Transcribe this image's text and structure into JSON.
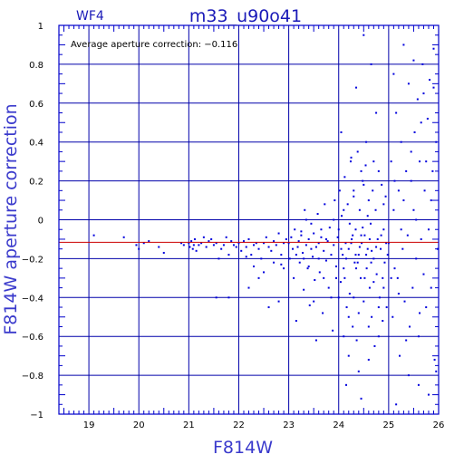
{
  "header": {
    "chip_label": "WF4",
    "title": "m33_u90o41"
  },
  "annotation": "Average aperture correction: −0.116",
  "colors": {
    "frame": "#0000cc",
    "grid": "#0000aa",
    "points": "#0000dd",
    "reference_line": "#cc0000",
    "axis_title": "#3a3acc"
  },
  "chart_data": {
    "type": "scatter",
    "xlabel": "F814W",
    "ylabel": "F814W aperture correction",
    "xlim": [
      18.4,
      26.0
    ],
    "ylim": [
      -1.0,
      1.0
    ],
    "x_ticks": [
      19,
      20,
      21,
      22,
      23,
      24,
      25,
      26
    ],
    "y_ticks": [
      -1,
      -0.8,
      -0.6,
      -0.4,
      -0.2,
      0,
      0.2,
      0.4,
      0.6,
      0.8,
      1
    ],
    "x_tick_labels": [
      "19",
      "20",
      "21",
      "22",
      "23",
      "24",
      "25",
      "26"
    ],
    "y_tick_labels": [
      "−1",
      "−0.8",
      "−0.6",
      "−0.4",
      "−0.2",
      "0",
      "0.2",
      "0.4",
      "0.6",
      "0.8",
      "1"
    ],
    "grid": true,
    "reference_line_y": -0.116,
    "series": [
      {
        "points": [
          [
            19.1,
            -0.08
          ],
          [
            19.7,
            -0.09
          ],
          [
            19.95,
            -0.13
          ],
          [
            20.0,
            -0.15
          ],
          [
            20.1,
            -0.12
          ],
          [
            20.2,
            -0.11
          ],
          [
            20.4,
            -0.14
          ],
          [
            20.5,
            -0.17
          ],
          [
            20.85,
            -0.12
          ],
          [
            20.9,
            -0.13
          ],
          [
            21.0,
            -0.12
          ],
          [
            21.02,
            -0.14
          ],
          [
            21.05,
            -0.11
          ],
          [
            21.08,
            -0.15
          ],
          [
            21.1,
            -0.13
          ],
          [
            21.12,
            -0.1
          ],
          [
            21.15,
            -0.16
          ],
          [
            21.2,
            -0.13
          ],
          [
            21.25,
            -0.12
          ],
          [
            21.3,
            -0.09
          ],
          [
            21.35,
            -0.14
          ],
          [
            21.4,
            -0.11
          ],
          [
            21.45,
            -0.1
          ],
          [
            21.5,
            -0.13
          ],
          [
            21.55,
            -0.12
          ],
          [
            21.6,
            -0.2
          ],
          [
            21.65,
            -0.15
          ],
          [
            21.7,
            -0.13
          ],
          [
            21.75,
            -0.09
          ],
          [
            21.8,
            -0.18
          ],
          [
            21.85,
            -0.11
          ],
          [
            21.9,
            -0.13
          ],
          [
            21.95,
            -0.14
          ],
          [
            21.55,
            -0.4
          ],
          [
            21.8,
            -0.4
          ],
          [
            22.0,
            -0.12
          ],
          [
            22.05,
            -0.16
          ],
          [
            22.1,
            -0.11
          ],
          [
            22.15,
            -0.14
          ],
          [
            22.2,
            -0.1
          ],
          [
            22.25,
            -0.18
          ],
          [
            22.3,
            -0.13
          ],
          [
            22.35,
            -0.12
          ],
          [
            22.4,
            -0.15
          ],
          [
            22.45,
            -0.2
          ],
          [
            22.5,
            -0.12
          ],
          [
            22.55,
            -0.09
          ],
          [
            22.6,
            -0.14
          ],
          [
            22.65,
            -0.16
          ],
          [
            22.7,
            -0.11
          ],
          [
            22.75,
            -0.13
          ],
          [
            22.8,
            -0.07
          ],
          [
            22.85,
            -0.18
          ],
          [
            22.9,
            -0.12
          ],
          [
            22.95,
            -0.1
          ],
          [
            22.2,
            -0.35
          ],
          [
            22.4,
            -0.3
          ],
          [
            22.6,
            -0.45
          ],
          [
            22.8,
            -0.42
          ],
          [
            22.9,
            -0.25
          ],
          [
            22.3,
            -0.24
          ],
          [
            22.7,
            -0.22
          ],
          [
            22.5,
            -0.27
          ],
          [
            22.15,
            -0.19
          ],
          [
            22.85,
            -0.23
          ],
          [
            23.0,
            -0.12
          ],
          [
            23.02,
            -0.2
          ],
          [
            23.05,
            -0.09
          ],
          [
            23.08,
            -0.15
          ],
          [
            23.1,
            -0.3
          ],
          [
            23.12,
            -0.05
          ],
          [
            23.15,
            -0.52
          ],
          [
            23.18,
            -0.14
          ],
          [
            23.2,
            -0.11
          ],
          [
            23.22,
            -0.22
          ],
          [
            23.25,
            -0.08
          ],
          [
            23.28,
            -0.17
          ],
          [
            23.3,
            -0.36
          ],
          [
            23.32,
            0.05
          ],
          [
            23.35,
            -0.13
          ],
          [
            23.38,
            -0.25
          ],
          [
            23.4,
            -0.1
          ],
          [
            23.42,
            -0.44
          ],
          [
            23.45,
            -0.02
          ],
          [
            23.48,
            -0.19
          ],
          [
            23.5,
            -0.07
          ],
          [
            23.52,
            -0.31
          ],
          [
            23.55,
            -0.14
          ],
          [
            23.58,
            0.03
          ],
          [
            23.6,
            -0.12
          ],
          [
            23.62,
            -0.27
          ],
          [
            23.65,
            -0.09
          ],
          [
            23.68,
            -0.48
          ],
          [
            23.7,
            -0.16
          ],
          [
            23.72,
            0.08
          ],
          [
            23.75,
            -0.21
          ],
          [
            23.78,
            -0.11
          ],
          [
            23.8,
            -0.35
          ],
          [
            23.82,
            -0.04
          ],
          [
            23.85,
            -0.18
          ],
          [
            23.88,
            -0.57
          ],
          [
            23.9,
            -0.13
          ],
          [
            23.92,
            0.1
          ],
          [
            23.95,
            -0.24
          ],
          [
            23.98,
            -0.09
          ],
          [
            23.55,
            -0.62
          ],
          [
            23.3,
            -0.2
          ],
          [
            23.7,
            -0.3
          ],
          [
            23.45,
            -0.15
          ],
          [
            23.65,
            -0.05
          ],
          [
            23.85,
            -0.4
          ],
          [
            23.25,
            -0.06
          ],
          [
            23.9,
            0.0
          ],
          [
            23.6,
            -0.2
          ],
          [
            23.4,
            -0.24
          ],
          [
            23.15,
            -0.18
          ],
          [
            23.75,
            -0.1
          ],
          [
            23.5,
            -0.42
          ],
          [
            23.35,
            0.0
          ],
          [
            23.95,
            -0.3
          ],
          [
            24.0,
            -0.05
          ],
          [
            24.02,
            0.15
          ],
          [
            24.04,
            -0.32
          ],
          [
            24.06,
            0.02
          ],
          [
            24.08,
            -0.18
          ],
          [
            24.1,
            -0.25
          ],
          [
            24.12,
            0.22
          ],
          [
            24.14,
            -0.12
          ],
          [
            24.16,
            -0.45
          ],
          [
            24.18,
            0.08
          ],
          [
            24.2,
            -0.15
          ],
          [
            24.22,
            -0.38
          ],
          [
            24.24,
            0.3
          ],
          [
            24.26,
            -0.1
          ],
          [
            24.28,
            -0.55
          ],
          [
            24.3,
            0.12
          ],
          [
            24.32,
            -0.22
          ],
          [
            24.34,
            -0.05
          ],
          [
            24.36,
            -0.62
          ],
          [
            24.38,
            0.35
          ],
          [
            24.4,
            -0.18
          ],
          [
            24.42,
            0.05
          ],
          [
            24.44,
            -0.3
          ],
          [
            24.46,
            -0.12
          ],
          [
            24.48,
            0.2
          ],
          [
            24.5,
            -0.42
          ],
          [
            24.52,
            -0.08
          ],
          [
            24.54,
            0.28
          ],
          [
            24.56,
            -0.25
          ],
          [
            24.58,
            -0.15
          ],
          [
            24.6,
            0.1
          ],
          [
            24.62,
            -0.35
          ],
          [
            24.64,
            -0.02
          ],
          [
            24.66,
            -0.5
          ],
          [
            24.68,
            0.15
          ],
          [
            24.7,
            -0.2
          ],
          [
            24.72,
            -0.65
          ],
          [
            24.74,
            0.05
          ],
          [
            24.76,
            -0.28
          ],
          [
            24.78,
            -0.1
          ],
          [
            24.8,
            0.25
          ],
          [
            24.82,
            -0.4
          ],
          [
            24.84,
            -0.15
          ],
          [
            24.86,
            0.18
          ],
          [
            24.88,
            -0.3
          ],
          [
            24.9,
            -0.05
          ],
          [
            24.92,
            -0.22
          ],
          [
            24.94,
            0.12
          ],
          [
            24.96,
            -0.45
          ],
          [
            24.98,
            -0.18
          ],
          [
            24.05,
            -0.15
          ],
          [
            24.15,
            -0.2
          ],
          [
            24.25,
            -0.12
          ],
          [
            24.35,
            -0.25
          ],
          [
            24.45,
            -0.08
          ],
          [
            24.55,
            -0.18
          ],
          [
            24.65,
            -0.22
          ],
          [
            24.75,
            -0.14
          ],
          [
            24.85,
            -0.08
          ],
          [
            24.95,
            -0.12
          ],
          [
            24.1,
            0.05
          ],
          [
            24.3,
            -0.4
          ],
          [
            24.5,
            0.18
          ],
          [
            24.7,
            -0.32
          ],
          [
            24.9,
            0.08
          ],
          [
            24.2,
            -0.7
          ],
          [
            24.4,
            -0.78
          ],
          [
            24.6,
            -0.72
          ],
          [
            24.8,
            -0.6
          ],
          [
            24.15,
            -0.85
          ],
          [
            24.45,
            -0.92
          ],
          [
            24.35,
            0.68
          ],
          [
            24.55,
            0.4
          ],
          [
            24.25,
            0.32
          ],
          [
            24.05,
            0.45
          ],
          [
            24.5,
            0.95
          ],
          [
            24.65,
            0.8
          ],
          [
            24.75,
            0.55
          ],
          [
            24.45,
            0.25
          ],
          [
            24.3,
            0.15
          ],
          [
            24.2,
            -0.5
          ],
          [
            24.6,
            -0.55
          ],
          [
            24.4,
            -0.48
          ],
          [
            24.8,
            -0.45
          ],
          [
            24.1,
            -0.6
          ],
          [
            24.9,
            -0.35
          ],
          [
            24.0,
            -0.4
          ],
          [
            24.7,
            0.3
          ],
          [
            24.38,
            -0.22
          ],
          [
            24.52,
            -0.3
          ],
          [
            24.48,
            -0.04
          ],
          [
            24.62,
            -0.1
          ],
          [
            24.28,
            -0.08
          ],
          [
            24.58,
            0.02
          ],
          [
            24.42,
            -0.14
          ],
          [
            24.34,
            -0.18
          ],
          [
            24.66,
            -0.16
          ],
          [
            24.22,
            -0.02
          ],
          [
            24.12,
            -0.3
          ],
          [
            24.88,
            -0.52
          ],
          [
            25.0,
            -0.12
          ],
          [
            25.05,
            0.3
          ],
          [
            25.08,
            -0.5
          ],
          [
            25.1,
            0.05
          ],
          [
            25.12,
            -0.25
          ],
          [
            25.15,
            0.55
          ],
          [
            25.18,
            -0.3
          ],
          [
            25.2,
            0.15
          ],
          [
            25.22,
            -0.7
          ],
          [
            25.25,
            0.4
          ],
          [
            25.28,
            -0.15
          ],
          [
            25.3,
            0.1
          ],
          [
            25.32,
            -0.42
          ],
          [
            25.35,
            0.25
          ],
          [
            25.38,
            -0.08
          ],
          [
            25.4,
            0.7
          ],
          [
            25.42,
            -0.55
          ],
          [
            25.45,
            0.2
          ],
          [
            25.48,
            -0.35
          ],
          [
            25.5,
            0.05
          ],
          [
            25.52,
            0.45
          ],
          [
            25.55,
            -0.2
          ],
          [
            25.58,
            0.62
          ],
          [
            25.6,
            -0.6
          ],
          [
            25.62,
            0.3
          ],
          [
            25.65,
            -0.1
          ],
          [
            25.68,
            0.8
          ],
          [
            25.7,
            -0.28
          ],
          [
            25.72,
            0.15
          ],
          [
            25.75,
            -0.45
          ],
          [
            25.78,
            0.52
          ],
          [
            25.8,
            -0.05
          ],
          [
            25.82,
            0.72
          ],
          [
            25.85,
            -0.35
          ],
          [
            25.88,
            0.25
          ],
          [
            25.9,
            0.68
          ],
          [
            25.92,
            -0.72
          ],
          [
            25.95,
            0.4
          ],
          [
            25.98,
            -0.15
          ],
          [
            25.1,
            0.75
          ],
          [
            25.3,
            0.9
          ],
          [
            25.5,
            0.82
          ],
          [
            25.7,
            0.65
          ],
          [
            25.9,
            0.88
          ],
          [
            25.4,
            -0.8
          ],
          [
            25.6,
            -0.85
          ],
          [
            25.8,
            -0.9
          ],
          [
            25.15,
            -0.95
          ],
          [
            25.95,
            -0.78
          ],
          [
            25.2,
            -0.38
          ],
          [
            25.35,
            -0.62
          ],
          [
            25.45,
            0.35
          ],
          [
            25.65,
            0.5
          ],
          [
            25.85,
            0.1
          ],
          [
            25.25,
            -0.05
          ],
          [
            25.55,
            0.0
          ],
          [
            25.75,
            0.3
          ],
          [
            25.05,
            -0.3
          ],
          [
            25.12,
            0.2
          ],
          [
            25.62,
            -0.48
          ]
        ]
      }
    ]
  }
}
